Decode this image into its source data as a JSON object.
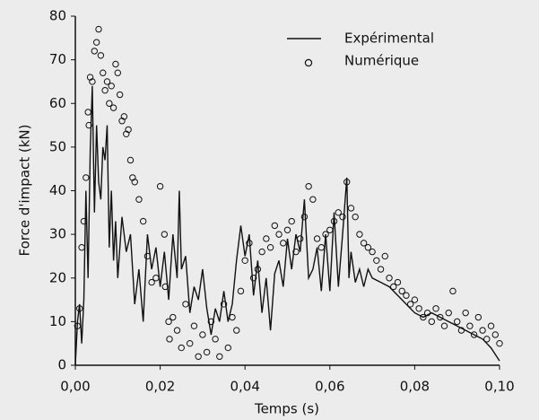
{
  "chart_data": {
    "type": "line",
    "x_label": "Temps (s)",
    "y_label": "Force d'impact (kN)",
    "xlim": [
      0,
      0.1
    ],
    "ylim": [
      0,
      80
    ],
    "xticks": [
      {
        "value": 0,
        "label": "0,00"
      },
      {
        "value": 0.02,
        "label": "0,02"
      },
      {
        "value": 0.04,
        "label": "0,04"
      },
      {
        "value": 0.06,
        "label": "0,06"
      },
      {
        "value": 0.08,
        "label": "0,08"
      },
      {
        "value": 0.1,
        "label": "0,10"
      }
    ],
    "yticks": [
      0,
      10,
      20,
      30,
      40,
      50,
      60,
      70,
      80
    ],
    "legend": "upper right",
    "series": [
      {
        "name": "Expérimental",
        "type": "line",
        "color": "#111111",
        "x": [
          0,
          0.0005,
          0.001,
          0.0015,
          0.002,
          0.0025,
          0.003,
          0.0035,
          0.004,
          0.0045,
          0.005,
          0.0055,
          0.006,
          0.0065,
          0.007,
          0.0075,
          0.008,
          0.0085,
          0.009,
          0.0095,
          0.01,
          0.011,
          0.012,
          0.013,
          0.014,
          0.015,
          0.016,
          0.017,
          0.018,
          0.019,
          0.02,
          0.021,
          0.022,
          0.023,
          0.024,
          0.0245,
          0.025,
          0.026,
          0.027,
          0.028,
          0.029,
          0.03,
          0.031,
          0.032,
          0.033,
          0.034,
          0.035,
          0.036,
          0.037,
          0.038,
          0.039,
          0.04,
          0.041,
          0.042,
          0.043,
          0.044,
          0.045,
          0.046,
          0.047,
          0.048,
          0.049,
          0.05,
          0.051,
          0.052,
          0.053,
          0.054,
          0.055,
          0.056,
          0.057,
          0.058,
          0.059,
          0.06,
          0.061,
          0.062,
          0.063,
          0.064,
          0.0645,
          0.065,
          0.066,
          0.067,
          0.068,
          0.069,
          0.07,
          0.072,
          0.074,
          0.076,
          0.078,
          0.08,
          0.082,
          0.084,
          0.086,
          0.088,
          0.09,
          0.092,
          0.094,
          0.096,
          0.098,
          0.1
        ],
        "values": [
          0,
          10,
          14,
          5,
          15,
          40,
          20,
          49,
          64,
          35,
          55,
          42,
          38,
          50,
          47,
          55,
          27,
          40,
          24,
          33,
          20,
          34,
          26,
          30,
          14,
          22,
          10,
          30,
          22,
          27,
          18,
          26,
          15,
          30,
          20,
          40,
          22,
          25,
          12,
          18,
          15,
          22,
          13,
          7,
          13,
          10,
          17,
          10,
          14,
          24,
          32,
          25,
          30,
          16,
          24,
          12,
          20,
          8,
          21,
          24,
          18,
          29,
          22,
          30,
          26,
          38,
          20,
          22,
          27,
          17,
          30,
          17,
          35,
          18,
          30,
          43,
          20,
          26,
          19,
          22,
          18,
          22,
          20,
          19,
          18,
          16,
          14,
          12,
          11,
          12,
          11,
          10,
          9,
          8,
          7,
          6,
          4,
          1
        ]
      },
      {
        "name": "Numérique",
        "type": "scatter",
        "color": "#111111",
        "x": [
          0.0005,
          0.001,
          0.0015,
          0.002,
          0.0025,
          0.003,
          0.0032,
          0.0035,
          0.004,
          0.0045,
          0.005,
          0.0055,
          0.006,
          0.0065,
          0.007,
          0.0075,
          0.008,
          0.0085,
          0.009,
          0.0095,
          0.01,
          0.0105,
          0.011,
          0.0115,
          0.012,
          0.0125,
          0.013,
          0.0135,
          0.014,
          0.015,
          0.016,
          0.017,
          0.018,
          0.019,
          0.02,
          0.021,
          0.0212,
          0.022,
          0.0222,
          0.023,
          0.024,
          0.025,
          0.026,
          0.027,
          0.028,
          0.029,
          0.03,
          0.031,
          0.032,
          0.033,
          0.034,
          0.035,
          0.036,
          0.037,
          0.038,
          0.039,
          0.04,
          0.041,
          0.042,
          0.043,
          0.044,
          0.045,
          0.046,
          0.047,
          0.048,
          0.049,
          0.05,
          0.051,
          0.052,
          0.053,
          0.054,
          0.055,
          0.056,
          0.057,
          0.058,
          0.059,
          0.06,
          0.061,
          0.062,
          0.063,
          0.064,
          0.065,
          0.066,
          0.067,
          0.068,
          0.069,
          0.07,
          0.071,
          0.072,
          0.073,
          0.074,
          0.075,
          0.076,
          0.077,
          0.078,
          0.079,
          0.08,
          0.081,
          0.082,
          0.083,
          0.084,
          0.085,
          0.086,
          0.087,
          0.088,
          0.089,
          0.09,
          0.091,
          0.092,
          0.093,
          0.094,
          0.095,
          0.096,
          0.097,
          0.098,
          0.099,
          0.1
        ],
        "values": [
          9,
          13,
          27,
          33,
          43,
          58,
          55,
          66,
          65,
          72,
          74,
          77,
          71,
          67,
          63,
          65,
          60,
          64,
          59,
          69,
          67,
          62,
          56,
          57,
          53,
          54,
          47,
          43,
          42,
          38,
          33,
          25,
          19,
          20,
          41,
          30,
          18,
          10,
          6,
          11,
          8,
          4,
          14,
          5,
          9,
          2,
          7,
          3,
          10,
          6,
          2,
          14,
          4,
          11,
          8,
          17,
          24,
          28,
          20,
          22,
          26,
          29,
          27,
          32,
          30,
          28,
          31,
          33,
          26,
          29,
          34,
          41,
          38,
          29,
          27,
          30,
          31,
          33,
          35,
          34,
          42,
          36,
          34,
          30,
          28,
          27,
          26,
          24,
          22,
          25,
          20,
          18,
          19,
          17,
          16,
          14,
          15,
          13,
          11,
          12,
          10,
          13,
          11,
          9,
          12,
          17,
          10,
          8,
          12,
          9,
          7,
          11,
          8,
          6,
          9,
          7,
          5
        ]
      }
    ]
  }
}
